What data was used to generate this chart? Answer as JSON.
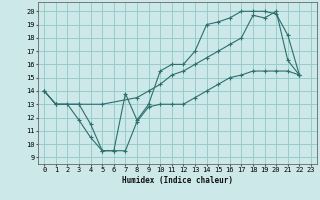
{
  "xlabel": "Humidex (Indice chaleur)",
  "background_color": "#cce8e8",
  "grid_color": "#99cccc",
  "line_color": "#2d6e6e",
  "xlim": [
    -0.5,
    23.5
  ],
  "ylim": [
    8.5,
    20.7
  ],
  "xticks": [
    0,
    1,
    2,
    3,
    4,
    5,
    6,
    7,
    8,
    9,
    10,
    11,
    12,
    13,
    14,
    15,
    16,
    17,
    18,
    19,
    20,
    21,
    22,
    23
  ],
  "yticks": [
    9,
    10,
    11,
    12,
    13,
    14,
    15,
    16,
    17,
    18,
    19,
    20
  ],
  "line1_x": [
    0,
    1,
    2,
    3,
    4,
    5,
    6,
    7,
    8,
    9,
    10,
    11,
    12,
    13,
    14,
    15,
    16,
    17,
    18,
    19,
    20,
    21,
    22
  ],
  "line1_y": [
    14,
    13,
    13,
    11.8,
    10.5,
    9.5,
    9.5,
    9.5,
    11.7,
    12.8,
    13,
    13,
    13,
    13.5,
    14,
    14.5,
    15,
    15.2,
    15.5,
    15.5,
    15.5,
    15.5,
    15.2
  ],
  "line2_x": [
    0,
    1,
    3,
    4,
    5,
    6,
    7,
    8,
    9,
    10,
    11,
    12,
    13,
    14,
    15,
    16,
    17,
    18,
    19,
    20,
    21,
    22
  ],
  "line2_y": [
    14,
    13,
    13,
    11.5,
    9.5,
    9.5,
    13.8,
    11.8,
    13,
    15.5,
    16,
    16,
    17,
    19,
    19.2,
    19.5,
    20,
    20,
    20,
    19.8,
    18.2,
    15.2
  ],
  "line3_x": [
    0,
    1,
    3,
    5,
    8,
    9,
    10,
    11,
    12,
    13,
    14,
    15,
    16,
    17,
    18,
    19,
    20,
    21,
    22
  ],
  "line3_y": [
    14,
    13,
    13,
    13,
    13.5,
    14,
    14.5,
    15.2,
    15.5,
    16,
    16.5,
    17,
    17.5,
    18,
    19.7,
    19.5,
    20,
    16.3,
    15.2
  ]
}
